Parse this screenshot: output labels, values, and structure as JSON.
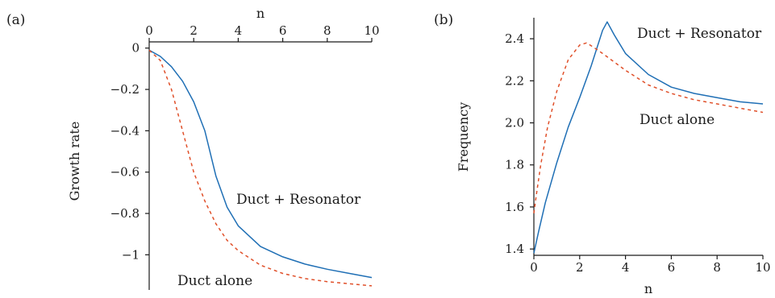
{
  "chart_data": [
    {
      "panel_label": "(a)",
      "type": "line",
      "xlabel": "n",
      "ylabel": "Growth rate",
      "xlim": [
        0,
        10
      ],
      "ylim": [
        -1.17,
        0.03
      ],
      "x_ticks": [
        0,
        2,
        4,
        6,
        8,
        10
      ],
      "y_ticks": [
        0,
        -0.2,
        -0.4,
        -0.6,
        -0.8,
        -1
      ],
      "x_tick_labels": [
        "0",
        "2",
        "4",
        "6",
        "8",
        "10"
      ],
      "y_tick_labels": [
        "0",
        "−0.2",
        "−0.4",
        "−0.6",
        "−0.8",
        "−1"
      ],
      "x_axis_position": "top",
      "grid": false,
      "series": [
        {
          "name": "Duct + Resonator",
          "color": "#1f6fb5",
          "style": "solid",
          "x": [
            0,
            0.5,
            1,
            1.5,
            2,
            2.5,
            3,
            3.5,
            4,
            5,
            6,
            7,
            8,
            9,
            10
          ],
          "y": [
            -0.01,
            -0.04,
            -0.09,
            -0.16,
            -0.26,
            -0.4,
            -0.62,
            -0.77,
            -0.86,
            -0.96,
            -1.01,
            -1.045,
            -1.07,
            -1.09,
            -1.11
          ]
        },
        {
          "name": "Duct alone",
          "color": "#e0502a",
          "style": "dashed",
          "x": [
            0,
            0.5,
            1,
            1.5,
            2,
            2.5,
            3,
            3.5,
            4,
            5,
            6,
            7,
            8,
            9,
            10
          ],
          "y": [
            -0.01,
            -0.06,
            -0.2,
            -0.4,
            -0.6,
            -0.74,
            -0.85,
            -0.93,
            -0.98,
            -1.05,
            -1.09,
            -1.115,
            -1.13,
            -1.14,
            -1.15
          ]
        }
      ]
    },
    {
      "panel_label": "(b)",
      "type": "line",
      "xlabel": "n",
      "ylabel": "Frequency",
      "xlim": [
        0,
        10
      ],
      "ylim": [
        1.37,
        2.5
      ],
      "x_ticks": [
        0,
        2,
        4,
        6,
        8,
        10
      ],
      "y_ticks": [
        1.4,
        1.6,
        1.8,
        2.0,
        2.2,
        2.4
      ],
      "x_tick_labels": [
        "0",
        "2",
        "4",
        "6",
        "8",
        "10"
      ],
      "y_tick_labels": [
        "1.4",
        "1.6",
        "1.8",
        "2.0",
        "2.2",
        "2.4"
      ],
      "x_axis_position": "bottom",
      "grid": false,
      "series": [
        {
          "name": "Duct + Resonator",
          "color": "#1f6fb5",
          "style": "solid",
          "x": [
            0,
            0.2,
            0.5,
            1,
            1.5,
            2,
            2.5,
            3,
            3.2,
            3.5,
            4,
            5,
            6,
            7,
            8,
            9,
            10
          ],
          "y": [
            1.38,
            1.48,
            1.62,
            1.81,
            1.98,
            2.12,
            2.27,
            2.44,
            2.48,
            2.42,
            2.33,
            2.23,
            2.17,
            2.14,
            2.12,
            2.1,
            2.09
          ]
        },
        {
          "name": "Duct alone",
          "color": "#e0502a",
          "style": "dashed",
          "x": [
            0,
            0.1,
            0.3,
            0.6,
            1,
            1.5,
            2,
            2.3,
            2.6,
            3,
            3.5,
            4,
            5,
            6,
            7,
            8,
            9,
            10
          ],
          "y": [
            1.57,
            1.65,
            1.8,
            1.98,
            2.15,
            2.3,
            2.37,
            2.38,
            2.36,
            2.33,
            2.29,
            2.25,
            2.18,
            2.14,
            2.11,
            2.09,
            2.07,
            2.05
          ]
        }
      ]
    }
  ],
  "annotations": {
    "a_resonator": "Duct + Resonator",
    "a_alone": "Duct alone",
    "b_resonator": "Duct + Resonator",
    "b_alone": "Duct alone"
  }
}
